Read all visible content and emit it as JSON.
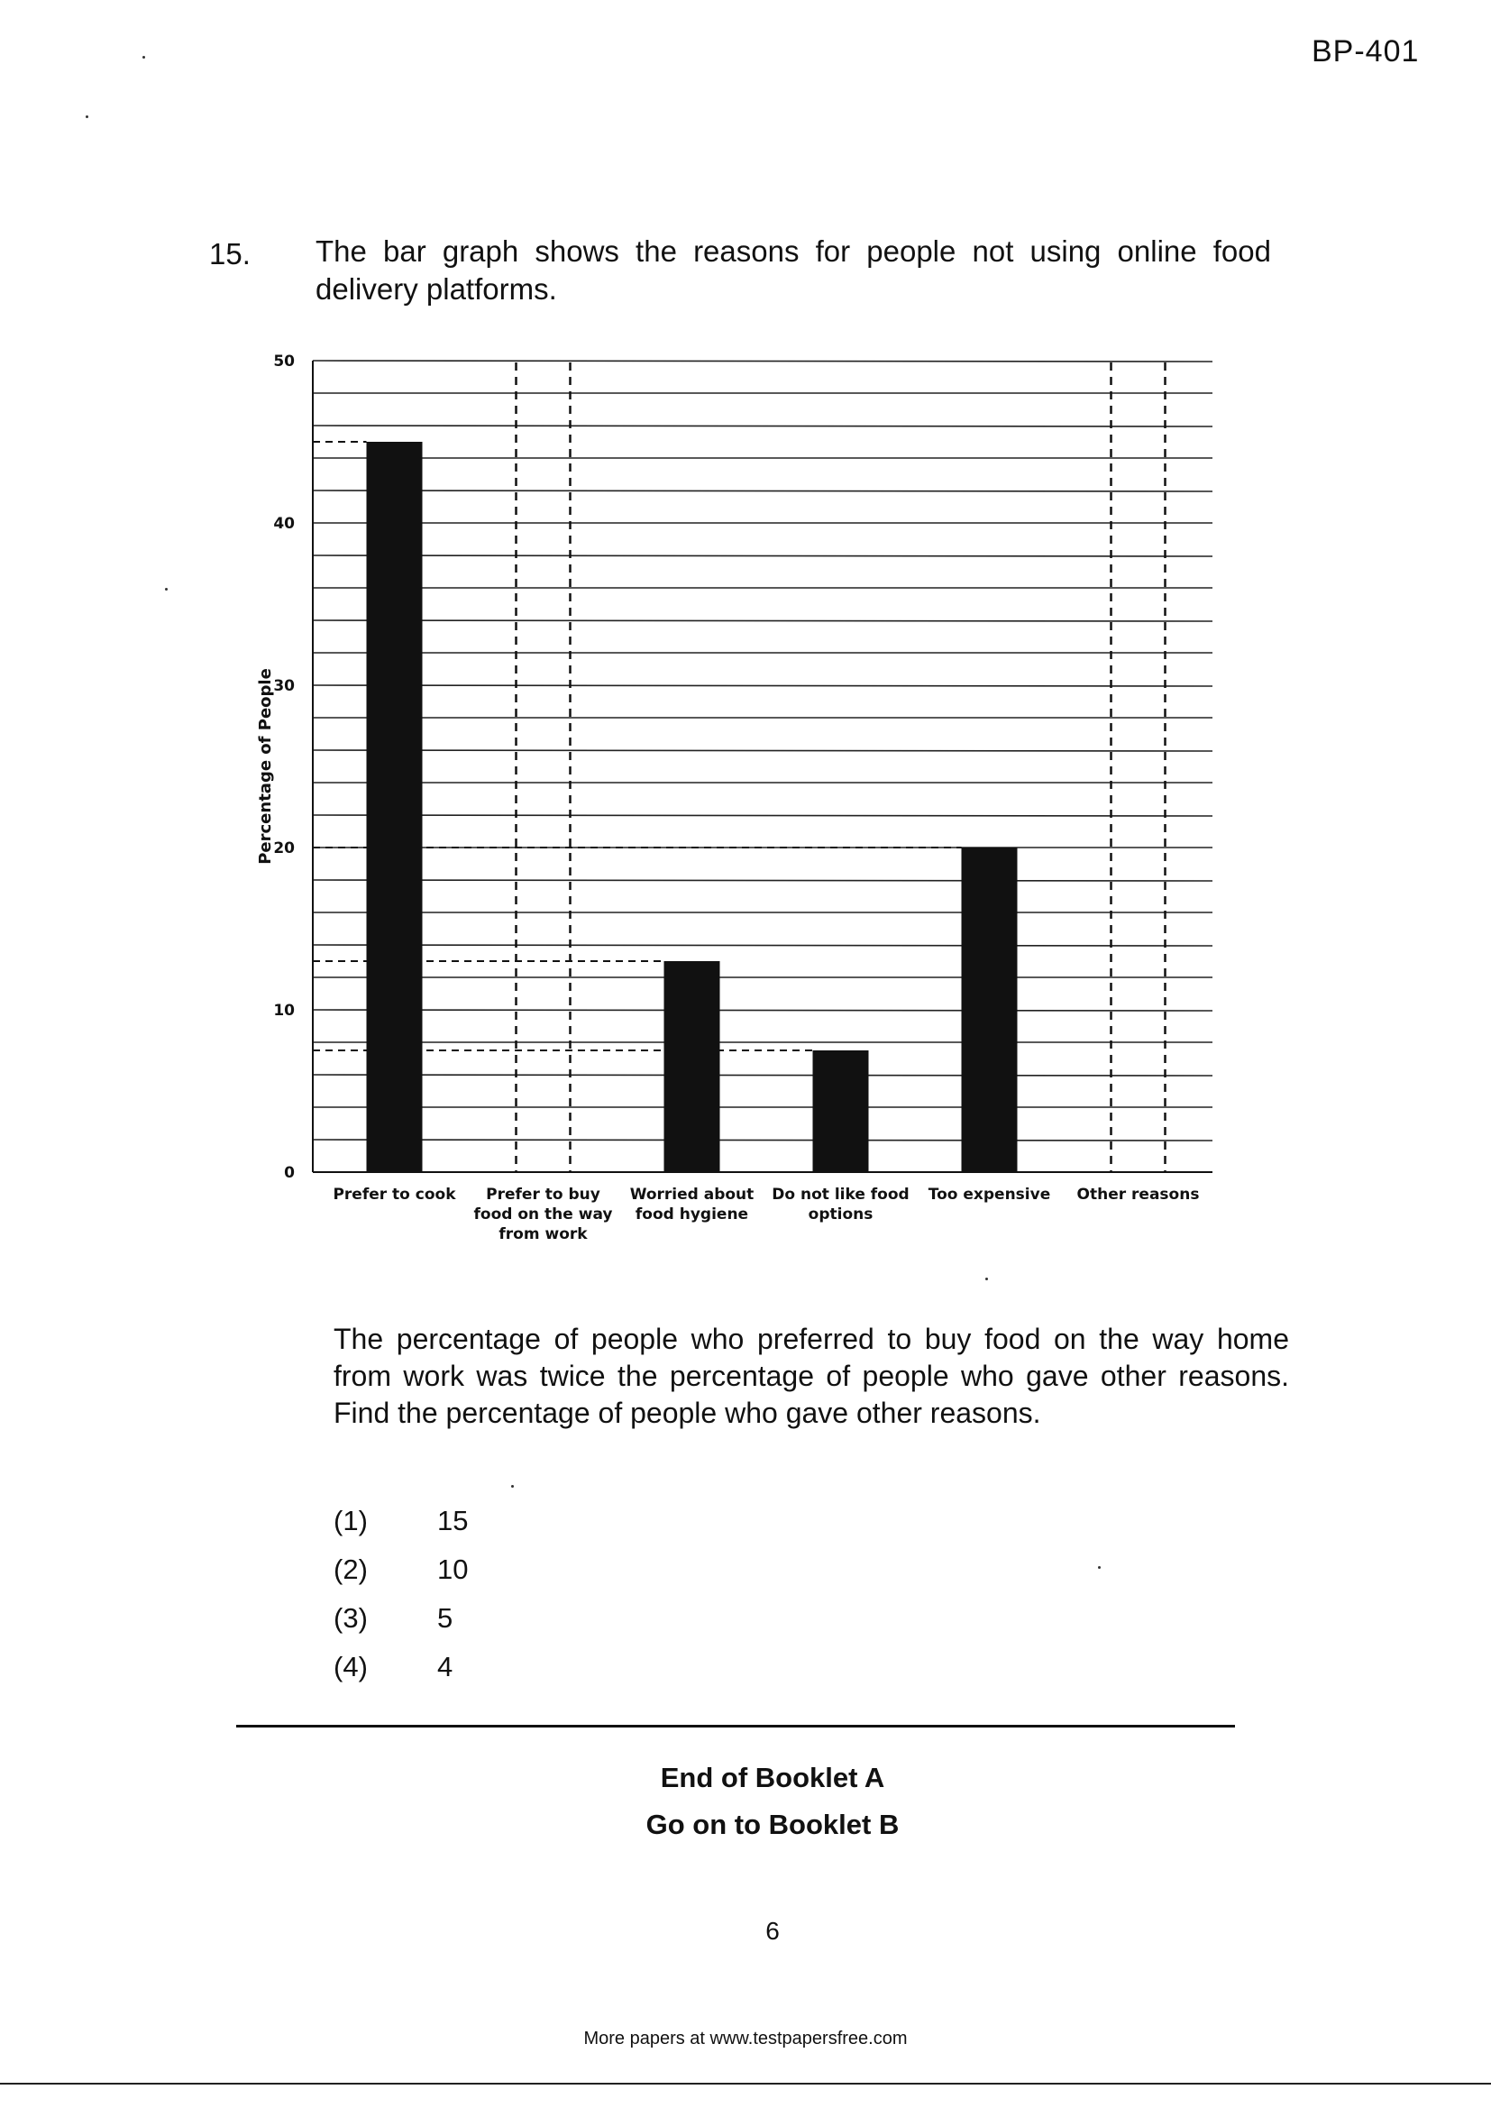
{
  "header": {
    "code": "BP-401"
  },
  "question": {
    "number": "15.",
    "text": "The bar graph shows the reasons for people not using online food delivery platforms.",
    "paragraph": "The percentage of people who preferred to buy food on the way home from work was twice the percentage of people who gave other reasons. Find the percentage of people who gave other reasons.",
    "options": [
      {
        "label": "(1)",
        "value": "15"
      },
      {
        "label": "(2)",
        "value": "10"
      },
      {
        "label": "(3)",
        "value": "5"
      },
      {
        "label": "(4)",
        "value": "4"
      }
    ]
  },
  "chart_data": {
    "type": "bar",
    "ylabel": "Percentage of People",
    "ylim": [
      0,
      50
    ],
    "yticks": [
      "0",
      "10",
      "20",
      "30",
      "40",
      "50"
    ],
    "categories": [
      [
        "Prefer to cook"
      ],
      [
        "Prefer to buy",
        "food on the way",
        "from work"
      ],
      [
        "Worried about",
        "food hygiene"
      ],
      [
        "Do not like food",
        "options"
      ],
      [
        "Too expensive"
      ],
      [
        "Other reasons"
      ]
    ],
    "values": [
      45,
      null,
      13,
      7.5,
      20,
      null
    ],
    "grid": true,
    "colors": {
      "bar": "#111111",
      "grid": "#222222"
    }
  },
  "footer_block": {
    "end_a": "End of Booklet A",
    "go_on": "Go on to Booklet B",
    "page_number": "6",
    "website": "More papers at www.testpapersfree.com"
  }
}
